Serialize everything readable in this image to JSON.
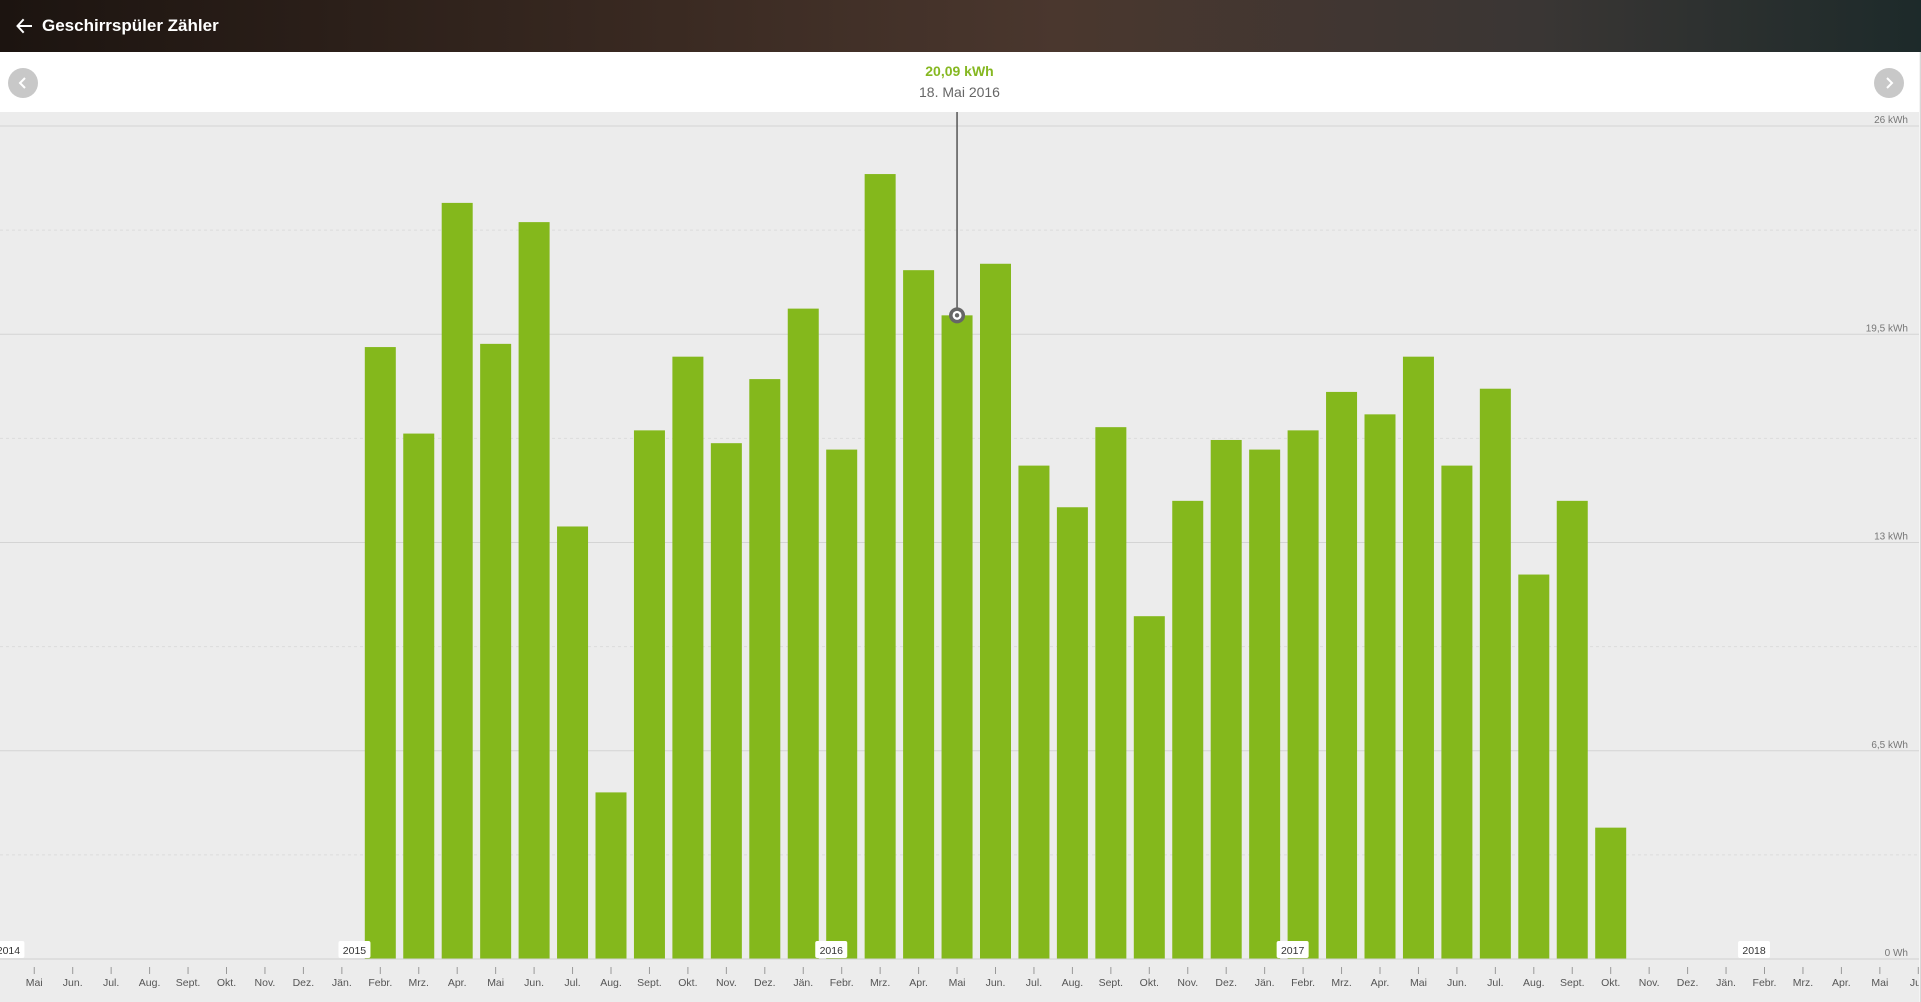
{
  "app": {
    "title": "Geschirrspüler Zähler"
  },
  "header": {
    "value": "20,09 kWh",
    "date": "18. Mai 2016"
  },
  "colors": {
    "bar": "#84b81c",
    "value": "#86b822"
  },
  "icons": {
    "back": "arrow-left-icon",
    "prev": "chevron-left-icon",
    "next": "chevron-right-icon"
  },
  "chart_data": {
    "type": "bar",
    "unit": "kWh",
    "ylim": [
      0,
      26
    ],
    "y_ticks": [
      "0 Wh",
      "6,5 kWh",
      "13 kWh",
      "19,5 kWh",
      "26 kWh"
    ],
    "x_ticks": [
      "r.",
      "Mai",
      "Jun.",
      "Jul.",
      "Aug.",
      "Sept.",
      "Okt.",
      "Nov.",
      "Dez.",
      "Jän.",
      "Febr.",
      "Mrz.",
      "Apr.",
      "Mai",
      "Jun.",
      "Jul.",
      "Aug.",
      "Sept.",
      "Okt.",
      "Nov.",
      "Dez.",
      "Jän.",
      "Febr.",
      "Mrz.",
      "Apr.",
      "Mai",
      "Jun.",
      "Jul.",
      "Aug.",
      "Sept.",
      "Okt.",
      "Nov.",
      "Dez.",
      "Jän.",
      "Febr.",
      "Mrz.",
      "Apr.",
      "Mai",
      "Jun.",
      "Jul.",
      "Aug.",
      "Sept.",
      "Okt.",
      "Nov.",
      "Dez.",
      "Jän.",
      "Febr.",
      "Mrz.",
      "Apr.",
      "Mai",
      "Jun"
    ],
    "year_labels": [
      "2014",
      "2015",
      "2016",
      "2017",
      "2018"
    ],
    "categories": [
      "Febr. 2015",
      "Mrz. 2015",
      "Apr. 2015",
      "Mai 2015",
      "Jun. 2015",
      "Jul. 2015",
      "Aug. 2015",
      "Sept. 2015",
      "Okt. 2015",
      "Nov. 2015",
      "Dez. 2015",
      "Jän. 2016",
      "Febr. 2016",
      "Mrz. 2016",
      "Apr. 2016",
      "Mai 2016",
      "Jun. 2016",
      "Jul. 2016",
      "Aug. 2016",
      "Sept. 2016",
      "Okt. 2016",
      "Nov. 2016",
      "Dez. 2016",
      "Jän. 2017",
      "Febr. 2017",
      "Mrz. 2017",
      "Apr. 2017",
      "Mai 2017",
      "Jun. 2017",
      "Jul. 2017",
      "Aug. 2017",
      "Sept. 2017",
      "Okt. 2017"
    ],
    "values": [
      19.1,
      16.4,
      23.6,
      19.2,
      23.0,
      13.5,
      5.2,
      16.5,
      18.8,
      16.1,
      18.1,
      20.3,
      15.9,
      24.5,
      21.5,
      20.09,
      21.7,
      15.4,
      14.1,
      16.6,
      10.7,
      14.3,
      16.2,
      15.9,
      16.5,
      17.7,
      17.0,
      18.8,
      15.4,
      17.8,
      12.0,
      14.3,
      4.1
    ],
    "selected": {
      "category": "Mai 2016",
      "value": 20.09
    }
  }
}
